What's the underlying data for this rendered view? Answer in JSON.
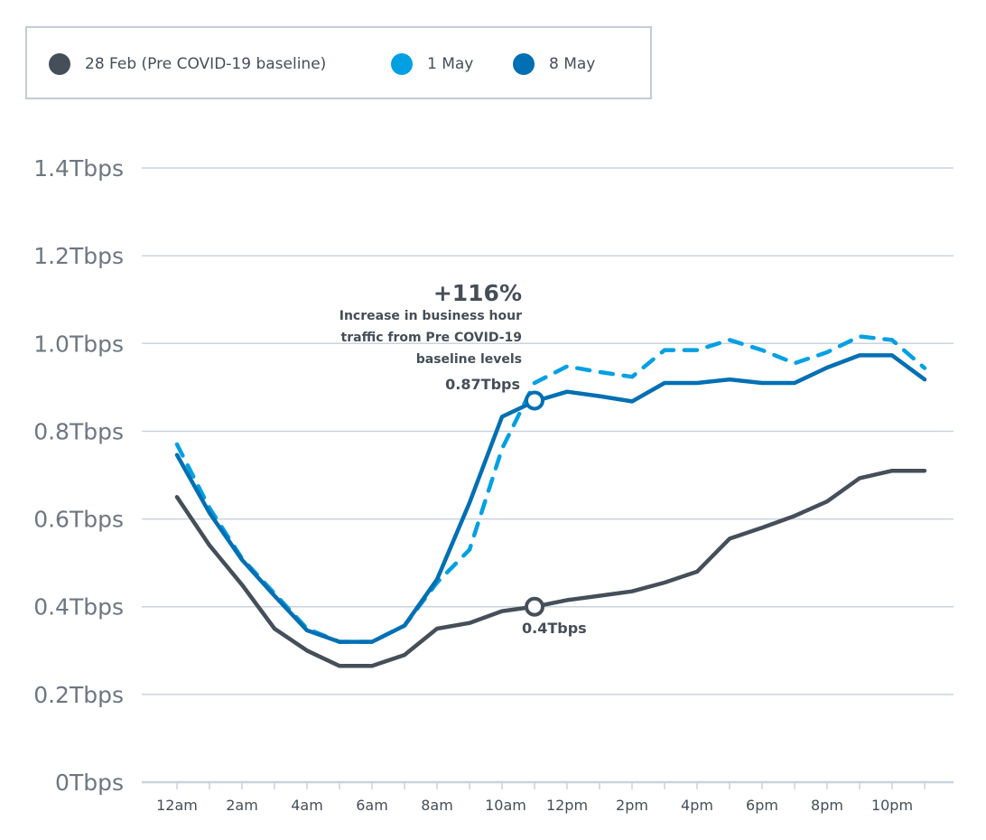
{
  "chart_data": {
    "type": "line",
    "title": "",
    "xlabel": "",
    "ylabel": "",
    "ylim": [
      0,
      1.4
    ],
    "y_ticks": [
      "0Tbps",
      "0.2Tbps",
      "0.4Tbps",
      "0.6Tbps",
      "0.8Tbps",
      "1.0Tbps",
      "1.2Tbps",
      "1.4Tbps"
    ],
    "y_tick_values": [
      0,
      0.2,
      0.4,
      0.6,
      0.8,
      1.0,
      1.2,
      1.4
    ],
    "x": [
      "12am",
      "1am",
      "2am",
      "3am",
      "4am",
      "5am",
      "6am",
      "7am",
      "8am",
      "9am",
      "10am",
      "11am",
      "12pm",
      "1pm",
      "2pm",
      "3pm",
      "4pm",
      "5pm",
      "6pm",
      "7pm",
      "8pm",
      "9pm",
      "10pm",
      "11pm"
    ],
    "x_tick_labels": [
      "12am",
      "2am",
      "4am",
      "6am",
      "8am",
      "10am",
      "12pm",
      "2pm",
      "4pm",
      "6pm",
      "8pm",
      "10pm"
    ],
    "grid": true,
    "legend_position": "top-left",
    "series": [
      {
        "name": "28 Feb (Pre COVID-19 baseline)",
        "color": "#454f5a",
        "style": "solid",
        "values": [
          0.65,
          0.54,
          0.45,
          0.35,
          0.3,
          0.265,
          0.265,
          0.29,
          0.35,
          0.363,
          0.39,
          0.4,
          0.415,
          0.425,
          0.435,
          0.455,
          0.48,
          0.555,
          0.58,
          0.607,
          0.64,
          0.693,
          0.71,
          0.71
        ]
      },
      {
        "name": "1 May",
        "color": "#00a0e3",
        "style": "dashed",
        "values": [
          0.77,
          0.625,
          0.51,
          0.43,
          0.35,
          0.32,
          0.32,
          0.357,
          0.455,
          0.53,
          0.76,
          0.91,
          0.948,
          0.935,
          0.924,
          0.985,
          0.985,
          1.008,
          0.985,
          0.955,
          0.98,
          1.016,
          1.008,
          0.944
        ]
      },
      {
        "name": "8 May",
        "color": "#006fb3",
        "style": "solid",
        "values": [
          0.746,
          0.614,
          0.507,
          0.425,
          0.346,
          0.32,
          0.32,
          0.357,
          0.462,
          0.637,
          0.833,
          0.868,
          0.89,
          0.88,
          0.868,
          0.91,
          0.91,
          0.918,
          0.91,
          0.91,
          0.945,
          0.973,
          0.973,
          0.918
        ]
      }
    ],
    "annotations": [
      {
        "headline": "+116%",
        "lines": [
          "Increase in business hour",
          "traffic from Pre COVID-19",
          "baseline levels"
        ],
        "value_label": "0.87Tbps",
        "series": "8 May",
        "x": "11am",
        "y": 0.87
      },
      {
        "value_label": "0.4Tbps",
        "series": "28 Feb (Pre COVID-19 baseline)",
        "x": "11am",
        "y": 0.4
      }
    ]
  },
  "legend": [
    {
      "label": "28 Feb (Pre COVID-19 baseline)",
      "color": "#454f5a"
    },
    {
      "label": "1 May",
      "color": "#00a0e3"
    },
    {
      "label": "8 May",
      "color": "#006fb3"
    }
  ],
  "colors": {
    "grid": "#c9d3de",
    "axis_text": "#6d7782",
    "text_dark": "#454e58"
  }
}
